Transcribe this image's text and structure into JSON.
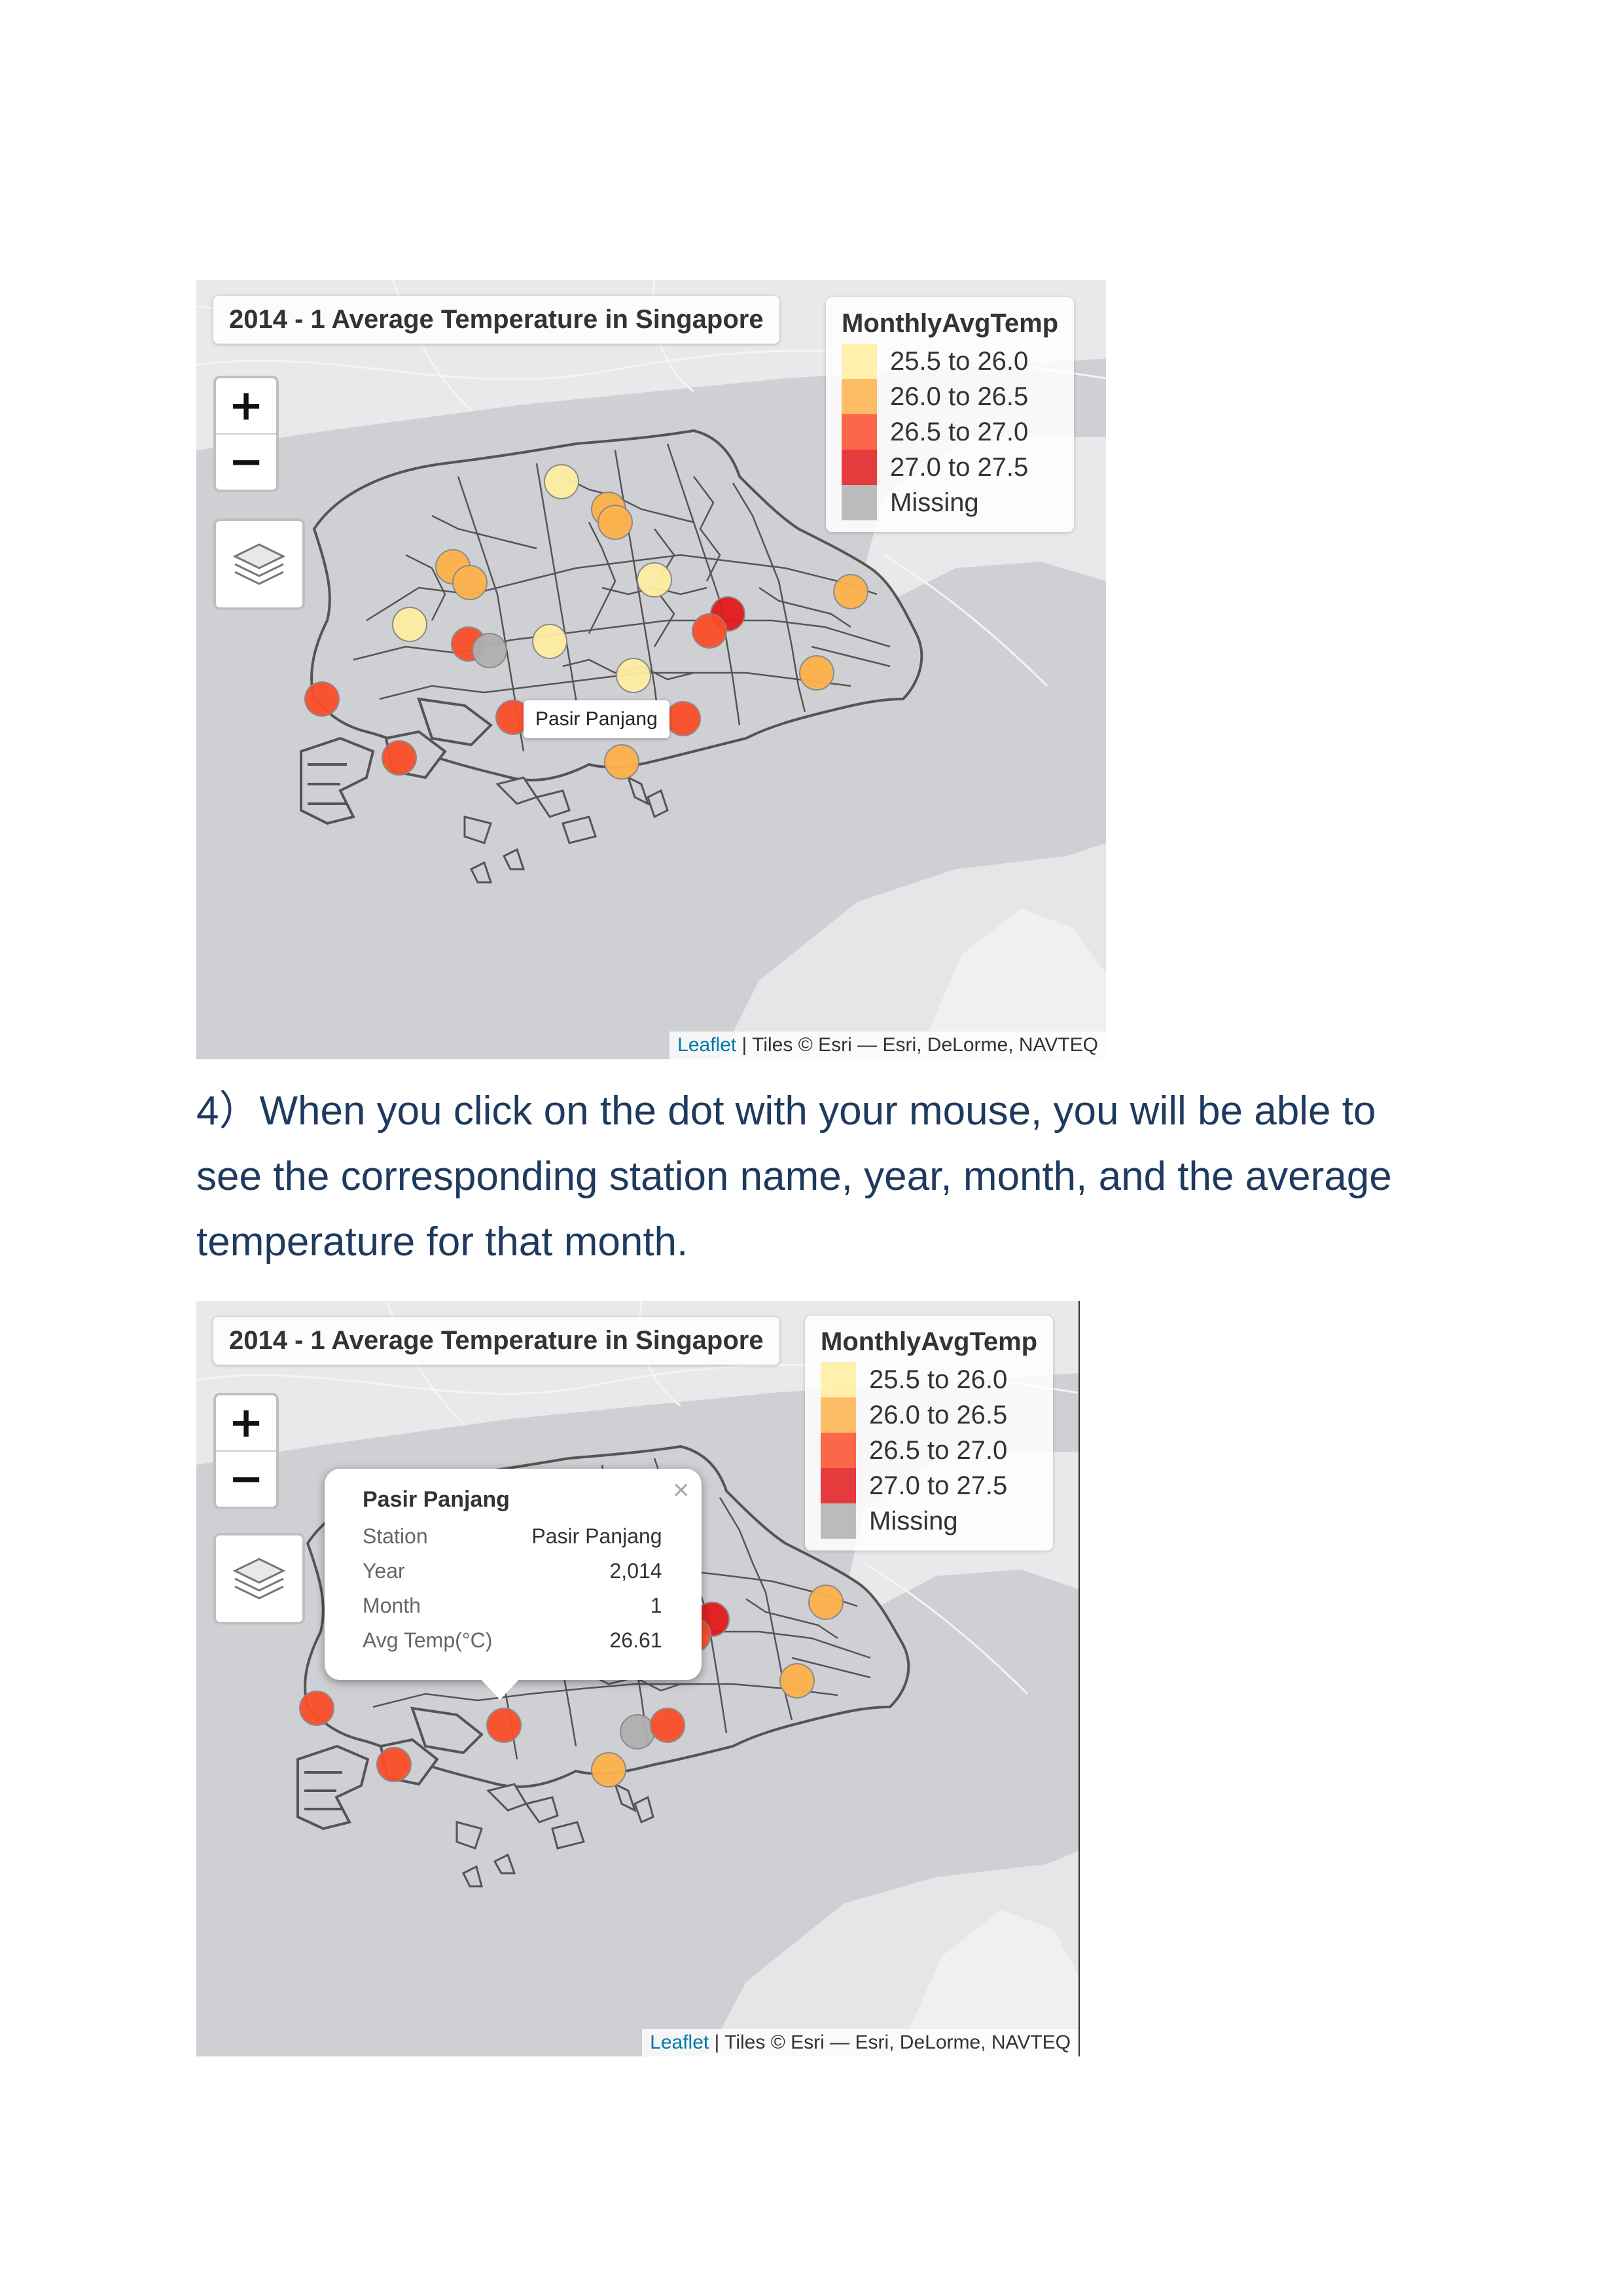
{
  "map_top": {
    "title": "2014 - 1 Average Temperature in Singapore",
    "zoom_in_label": "+",
    "zoom_out_label": "−",
    "tooltip": "Pasir Panjang",
    "attribution_link": "Leaflet",
    "attribution_text": " | Tiles © Esri — Esri, DeLorme, NAVTEQ"
  },
  "legend": {
    "title": "MonthlyAvgTemp",
    "items": [
      {
        "label": "25.5 to 26.0",
        "color": "#ffeda0"
      },
      {
        "label": "26.0 to 26.5",
        "color": "#feb24c"
      },
      {
        "label": "26.5 to 27.0",
        "color": "#fc4e2a"
      },
      {
        "label": "27.0 to 27.5",
        "color": "#e31a1c"
      },
      {
        "label": "Missing",
        "color": "#b0b0b0"
      }
    ]
  },
  "instruction": "4）When you click on the dot with your mouse, you will be able to see the corresponding station name, year, month, and the average temperature for that month.",
  "map_bottom": {
    "title": "2014 - 1 Average Temperature in Singapore",
    "zoom_in_label": "+",
    "zoom_out_label": "−",
    "popup": {
      "title": "Pasir Panjang",
      "close": "×",
      "rows": [
        {
          "key": "Station",
          "value": "Pasir Panjang"
        },
        {
          "key": "Year",
          "value": "2,014"
        },
        {
          "key": "Month",
          "value": "1"
        },
        {
          "key": "Avg Temp(°C)",
          "value": "26.61"
        }
      ]
    },
    "attribution_link": "Leaflet",
    "attribution_text": " | Tiles © Esri — Esri, DeLorme, NAVTEQ"
  }
}
